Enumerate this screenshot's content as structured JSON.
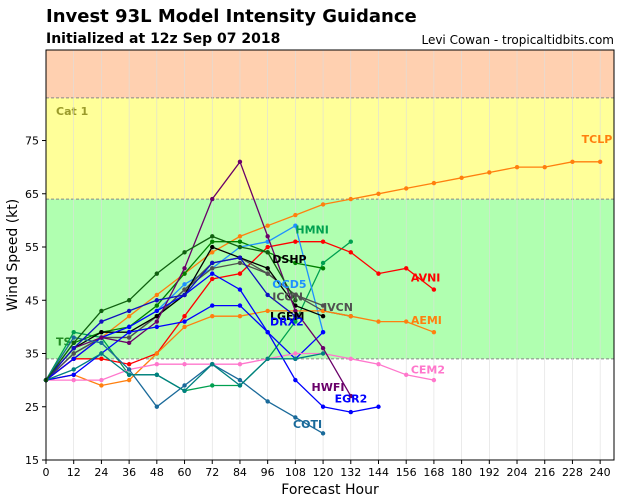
{
  "header": {
    "title": "Invest 93L Model Intensity Guidance",
    "subtitle": "Initialized at 12z Sep 07 2018",
    "credit": "Levi Cowan - tropicaltidbits.com"
  },
  "chart_data": {
    "type": "line",
    "xlabel": "Forecast Hour",
    "ylabel": "Wind Speed (kt)",
    "xlim": [
      0,
      246
    ],
    "ylim": [
      15,
      92
    ],
    "xticks": [
      0,
      12,
      24,
      36,
      48,
      60,
      72,
      84,
      96,
      108,
      120,
      132,
      144,
      156,
      168,
      180,
      192,
      204,
      216,
      228,
      240
    ],
    "yticks": [
      15,
      25,
      35,
      45,
      55,
      65,
      75
    ],
    "bands": [
      {
        "label": "",
        "from": 15,
        "to": 34,
        "color": "#ffffff",
        "label_color": "#000000"
      },
      {
        "label": "TS",
        "from": 34,
        "to": 64,
        "color": "#b0ffb0",
        "label_color": "#228b22"
      },
      {
        "label": "Cat 1",
        "from": 64,
        "to": 83,
        "color": "#ffff99",
        "label_color": "#9a9a2a"
      },
      {
        "label": "",
        "from": 83,
        "to": 92,
        "color": "#ffd0b0",
        "label_color": "#000000"
      }
    ],
    "series": [
      {
        "name": "TCLP",
        "color": "#ff7f0e",
        "x": [
          0,
          12,
          24,
          36,
          48,
          60,
          72,
          84,
          96,
          108,
          120,
          132,
          144,
          156,
          168,
          180,
          192,
          204,
          216,
          228,
          240
        ],
        "y": [
          30,
          34,
          38,
          42,
          46,
          50,
          54,
          57,
          59,
          61,
          63,
          64,
          65,
          66,
          67,
          68,
          69,
          70,
          70,
          71,
          71
        ]
      },
      {
        "name": "HMNI",
        "color": "#00a050",
        "x": [
          0,
          12,
          24,
          36,
          48,
          60,
          72,
          84,
          96,
          108,
          120,
          132
        ],
        "y": [
          30,
          39,
          38,
          31,
          31,
          28,
          29,
          29,
          34,
          41,
          52,
          56
        ]
      },
      {
        "name": "AVNI",
        "color": "#ff0000",
        "x": [
          0,
          12,
          24,
          36,
          48,
          60,
          72,
          84,
          96,
          108,
          120,
          132,
          144,
          156,
          168
        ],
        "y": [
          30,
          34,
          34,
          33,
          35,
          42,
          49,
          50,
          55,
          56,
          56,
          54,
          50,
          51,
          47
        ]
      },
      {
        "name": "DSHP",
        "color": "#008000",
        "x": [
          0,
          12,
          24,
          36,
          48,
          60,
          72,
          84,
          96,
          108,
          120
        ],
        "y": [
          30,
          37,
          39,
          40,
          44,
          50,
          56,
          56,
          54,
          52,
          51
        ]
      },
      {
        "name": "OCD5",
        "color": "#1e90ff",
        "x": [
          0,
          12,
          24,
          36,
          48,
          60,
          72,
          84,
          96,
          108,
          120
        ],
        "y": [
          30,
          35,
          38,
          40,
          43,
          48,
          51,
          55,
          56,
          59,
          39
        ]
      },
      {
        "name": "ICON",
        "color": "#505050",
        "x": [
          0,
          12,
          24,
          36,
          48,
          60,
          72,
          84,
          96,
          108,
          120
        ],
        "y": [
          30,
          35,
          38,
          38,
          42,
          47,
          52,
          53,
          50,
          46,
          44
        ]
      },
      {
        "name": "IVCN",
        "color": "#505050",
        "x": [
          0,
          12,
          24,
          36,
          48,
          60,
          72,
          84,
          96,
          108,
          120,
          132
        ],
        "y": [
          30,
          35,
          38,
          38,
          42,
          47,
          51,
          52,
          50,
          46,
          43,
          42
        ]
      },
      {
        "name": "AEMI",
        "color": "#ff7f0e",
        "x": [
          0,
          12,
          24,
          36,
          48,
          60,
          72,
          84,
          96,
          108,
          120,
          132,
          144,
          156,
          168
        ],
        "y": [
          30,
          31,
          29,
          30,
          35,
          40,
          42,
          42,
          43,
          43,
          43,
          42,
          41,
          41,
          39
        ]
      },
      {
        "name": "LGEM",
        "color": "#000000",
        "x": [
          0,
          12,
          24,
          36,
          48,
          60,
          72,
          84,
          96,
          108,
          120
        ],
        "y": [
          30,
          36,
          39,
          39,
          42,
          46,
          55,
          53,
          51,
          44,
          42
        ]
      },
      {
        "name": "DRX2",
        "color": "#0000ff",
        "x": [
          0,
          12,
          24,
          36,
          48,
          60,
          72,
          84,
          96,
          108,
          120
        ],
        "y": [
          30,
          34,
          38,
          40,
          43,
          46,
          50,
          47,
          39,
          34,
          39
        ]
      },
      {
        "name": "CEM2",
        "color": "#ff77cc",
        "x": [
          0,
          12,
          24,
          36,
          48,
          60,
          72,
          84,
          96,
          108,
          120,
          132,
          144,
          156,
          168
        ],
        "y": [
          30,
          30,
          30,
          32,
          33,
          33,
          33,
          33,
          34,
          35,
          35,
          34,
          33,
          31,
          30
        ]
      },
      {
        "name": "HWFI",
        "color": "#6a006a",
        "x": [
          0,
          12,
          24,
          36,
          48,
          60,
          72,
          84,
          96,
          108,
          120,
          132
        ],
        "y": [
          30,
          36,
          38,
          37,
          41,
          51,
          64,
          71,
          57,
          43,
          36,
          27
        ]
      },
      {
        "name": "EGR2",
        "color": "#0000ff",
        "x": [
          0,
          12,
          24,
          36,
          48,
          60,
          72,
          84,
          96,
          108,
          120,
          132,
          144
        ],
        "y": [
          30,
          31,
          35,
          39,
          40,
          41,
          44,
          44,
          39,
          30,
          25,
          24,
          25
        ]
      },
      {
        "name": "COTI",
        "color": "#1a6a9a",
        "x": [
          0,
          12,
          24,
          36,
          48,
          60,
          72,
          84,
          96,
          108,
          120
        ],
        "y": [
          30,
          38,
          37,
          32,
          25,
          29,
          33,
          30,
          26,
          23,
          20
        ]
      },
      {
        "name": "",
        "color": "#008080",
        "x": [
          0,
          12,
          24,
          36,
          48,
          60,
          72,
          84,
          96,
          108,
          120
        ],
        "y": [
          30,
          32,
          35,
          31,
          31,
          28,
          33,
          29,
          34,
          34,
          35
        ]
      },
      {
        "name": "",
        "color": "#1010c0",
        "x": [
          0,
          12,
          24,
          36,
          48,
          60,
          72,
          84,
          96,
          108
        ],
        "y": [
          30,
          36,
          41,
          43,
          45,
          46,
          52,
          53,
          46,
          42
        ]
      },
      {
        "name": "",
        "color": "#106010",
        "x": [
          0,
          12,
          24,
          36,
          48,
          60,
          72,
          84,
          96,
          108
        ],
        "y": [
          30,
          37,
          43,
          45,
          50,
          54,
          57,
          55,
          54,
          45
        ]
      }
    ],
    "labels": [
      {
        "text": "TCLP",
        "x": 232,
        "y": 74.5,
        "color": "#ff7f0e"
      },
      {
        "text": "HMNI",
        "x": 108,
        "y": 57.5,
        "color": "#00a050"
      },
      {
        "text": "DSHP",
        "x": 98,
        "y": 52,
        "color": "#000000"
      },
      {
        "text": "AVNI",
        "x": 158,
        "y": 48.5,
        "color": "#ff0000"
      },
      {
        "text": "OCD5",
        "x": 98,
        "y": 47.3,
        "color": "#1e90ff"
      },
      {
        "text": "ICON",
        "x": 98,
        "y": 45,
        "color": "#505050"
      },
      {
        "text": "IVCN",
        "x": 120,
        "y": 43,
        "color": "#505050"
      },
      {
        "text": "LGEM",
        "x": 97,
        "y": 41.3,
        "color": "#000000"
      },
      {
        "text": "DRX2",
        "x": 97,
        "y": 40.3,
        "color": "#0000ff"
      },
      {
        "text": "AEMI",
        "x": 158,
        "y": 40.5,
        "color": "#ff7f0e"
      },
      {
        "text": "CEM2",
        "x": 158,
        "y": 31.2,
        "color": "#ff77cc"
      },
      {
        "text": "HWFI",
        "x": 115,
        "y": 28,
        "color": "#6a006a"
      },
      {
        "text": "EGR2",
        "x": 125,
        "y": 25.8,
        "color": "#0000ff"
      },
      {
        "text": "COTI",
        "x": 107,
        "y": 21,
        "color": "#1a6a9a"
      }
    ]
  }
}
